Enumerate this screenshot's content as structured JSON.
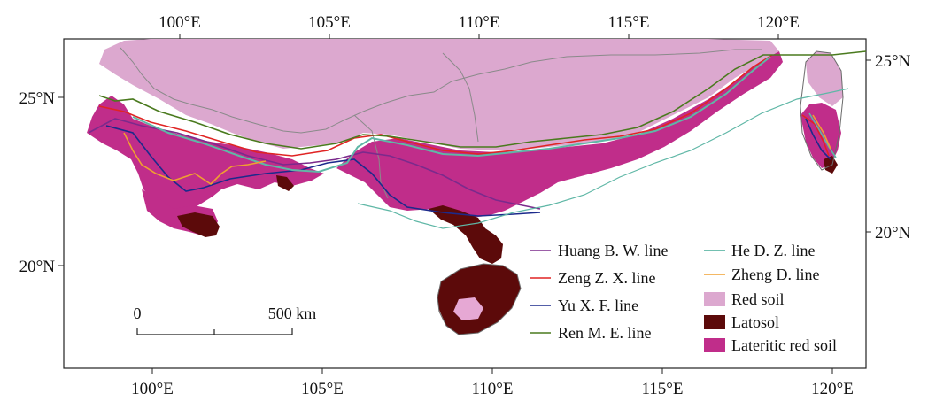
{
  "axes": {
    "top": [
      "100°E",
      "105°E",
      "110°E",
      "115°E",
      "120°E"
    ],
    "bottom": [
      "100°E",
      "105°E",
      "110°E",
      "115°E",
      "120°E"
    ],
    "left": [
      "25°N",
      "20°N"
    ],
    "right": [
      "25°N",
      "20°N"
    ]
  },
  "scale_bar": {
    "start": "0",
    "end": "500 km"
  },
  "legend": {
    "lines": [
      {
        "label": "Huang B. W. line",
        "color": "#7b2a8c"
      },
      {
        "label": "Zeng Z. X. line",
        "color": "#e02424"
      },
      {
        "label": "Yu X. F. line",
        "color": "#1c2a8c"
      },
      {
        "label": "Ren M. E. line",
        "color": "#4a7a1e"
      },
      {
        "label": "He D. Z. line",
        "color": "#5fb7a6"
      },
      {
        "label": "Zheng D. line",
        "color": "#f0a030"
      }
    ],
    "areas": [
      {
        "label": "Red soil",
        "color": "#dca8cf"
      },
      {
        "label": "Latosol",
        "color": "#5c0a0a"
      },
      {
        "label": "Lateritic red soil",
        "color": "#c02d8a"
      }
    ]
  }
}
